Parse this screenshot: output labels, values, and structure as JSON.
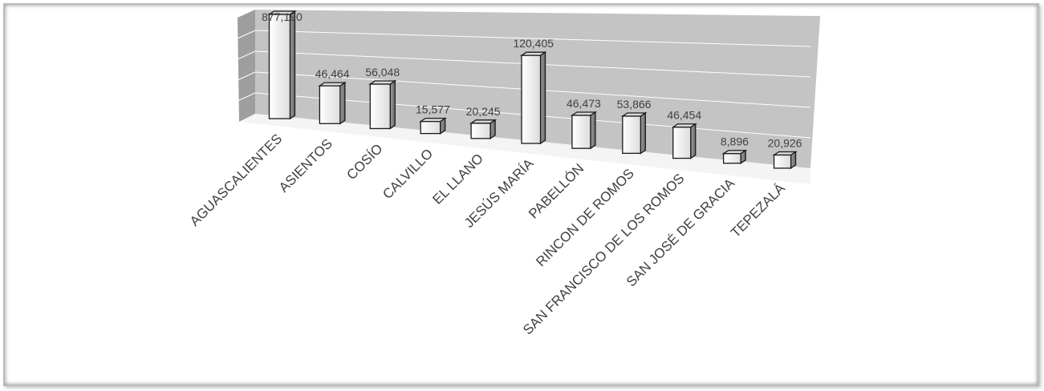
{
  "chart_data": {
    "type": "bar",
    "style": "3d-perspective",
    "categories": [
      "AGUASCALIENTES",
      "ASIENTOS",
      "COSÍO",
      "CALVILLO",
      "EL LLANO",
      "JESÚS MARÍA",
      "PABELLÓN",
      "RINCON DE ROMOS",
      "SAN FRANCISCO DE LOS ROMOS",
      "SAN JOSÉ DE GRACIA",
      "TEPEZALÁ"
    ],
    "values": [
      877190,
      46464,
      56048,
      15577,
      20245,
      120405,
      46473,
      53866,
      46454,
      8896,
      20926
    ],
    "value_labels": [
      "877,190",
      "46,464",
      "56,048",
      "15,577",
      "20,245",
      "120,405",
      "46,473",
      "53,866",
      "46,454",
      "8,896",
      "20,926"
    ],
    "title": "",
    "xlabel": "",
    "ylabel": "",
    "grid": true,
    "legend": "none",
    "colors": {
      "bar_front": "#f2f2f2",
      "bar_side": "#8c8c8c",
      "bar_top": "#d9d9d9",
      "bar_outline": "#1a1a1a",
      "plot_back_wall": "#c4c4c4",
      "gridline": "#ffffff",
      "label_text": "#404040"
    }
  }
}
